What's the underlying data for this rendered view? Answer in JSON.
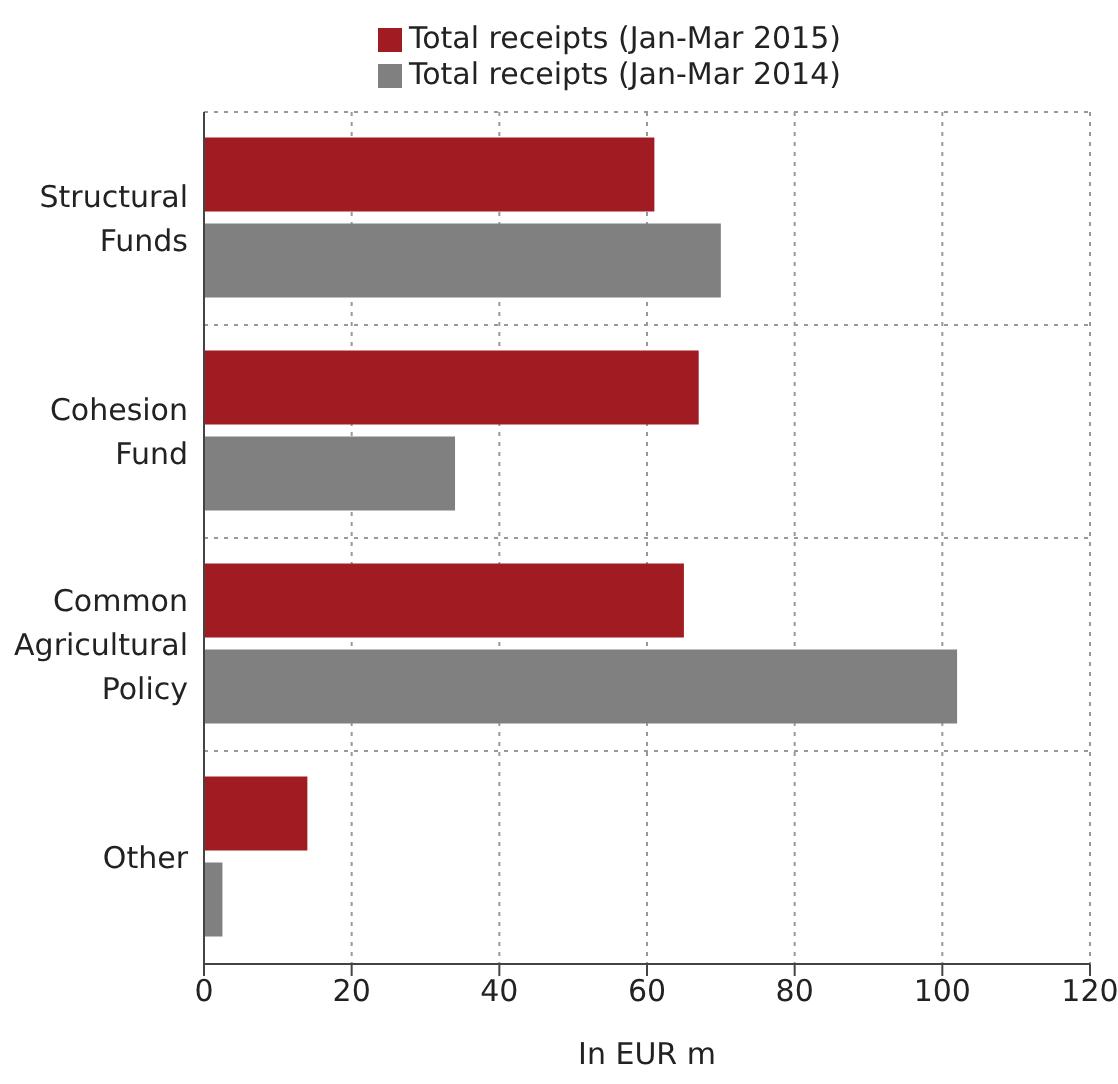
{
  "chart_data": {
    "type": "bar",
    "orientation": "horizontal",
    "categories": [
      "Structural Funds",
      "Cohesion Fund",
      "Common Agricultural Policy",
      "Other"
    ],
    "series": [
      {
        "name": "Total receipts (Jan-Mar 2015)",
        "color": "#a01c22",
        "values": [
          61,
          67,
          65,
          14
        ]
      },
      {
        "name": "Total receipts (Jan-Mar 2014)",
        "color": "#808080",
        "values": [
          70,
          34,
          102,
          2.5
        ]
      }
    ],
    "xlabel": "In EUR m",
    "xlim": [
      0,
      120
    ],
    "xticks": [
      0,
      20,
      40,
      60,
      80,
      100,
      120
    ],
    "grid": true,
    "legend": "top"
  }
}
